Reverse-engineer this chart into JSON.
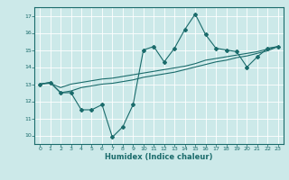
{
  "title": "",
  "xlabel": "Humidex (Indice chaleur)",
  "bg_color": "#cce9e9",
  "grid_color": "#ffffff",
  "line_color": "#1a6b6b",
  "xlim": [
    -0.5,
    23.5
  ],
  "ylim": [
    9.5,
    17.5
  ],
  "xticks": [
    0,
    1,
    2,
    3,
    4,
    5,
    6,
    7,
    8,
    9,
    10,
    11,
    12,
    13,
    14,
    15,
    16,
    17,
    18,
    19,
    20,
    21,
    22,
    23
  ],
  "yticks": [
    10,
    11,
    12,
    13,
    14,
    15,
    16,
    17
  ],
  "line1_x": [
    0,
    1,
    2,
    3,
    4,
    5,
    6,
    7,
    8,
    9,
    10,
    11,
    12,
    13,
    14,
    15,
    16,
    17,
    18,
    19,
    20,
    21,
    22,
    23
  ],
  "line1_y": [
    13.0,
    13.1,
    12.5,
    12.5,
    11.5,
    11.5,
    11.8,
    9.9,
    10.5,
    11.8,
    15.0,
    15.2,
    14.3,
    15.1,
    16.2,
    17.1,
    15.9,
    15.1,
    15.0,
    14.9,
    14.0,
    14.6,
    15.1,
    15.2
  ],
  "line2_x": [
    0,
    1,
    2,
    3,
    4,
    5,
    6,
    7,
    8,
    9,
    10,
    11,
    12,
    13,
    14,
    15,
    16,
    17,
    18,
    19,
    20,
    21,
    22,
    23
  ],
  "line2_y": [
    13.0,
    13.05,
    12.8,
    13.0,
    13.1,
    13.2,
    13.3,
    13.35,
    13.45,
    13.55,
    13.65,
    13.75,
    13.85,
    13.95,
    14.05,
    14.2,
    14.4,
    14.5,
    14.6,
    14.7,
    14.8,
    14.9,
    15.05,
    15.2
  ],
  "line3_x": [
    0,
    1,
    2,
    3,
    4,
    5,
    6,
    7,
    8,
    9,
    10,
    11,
    12,
    13,
    14,
    15,
    16,
    17,
    18,
    19,
    20,
    21,
    22,
    23
  ],
  "line3_y": [
    13.0,
    13.1,
    12.5,
    12.6,
    12.8,
    12.9,
    13.0,
    13.05,
    13.15,
    13.25,
    13.4,
    13.5,
    13.6,
    13.7,
    13.85,
    14.0,
    14.15,
    14.3,
    14.4,
    14.55,
    14.65,
    14.8,
    14.95,
    15.2
  ]
}
